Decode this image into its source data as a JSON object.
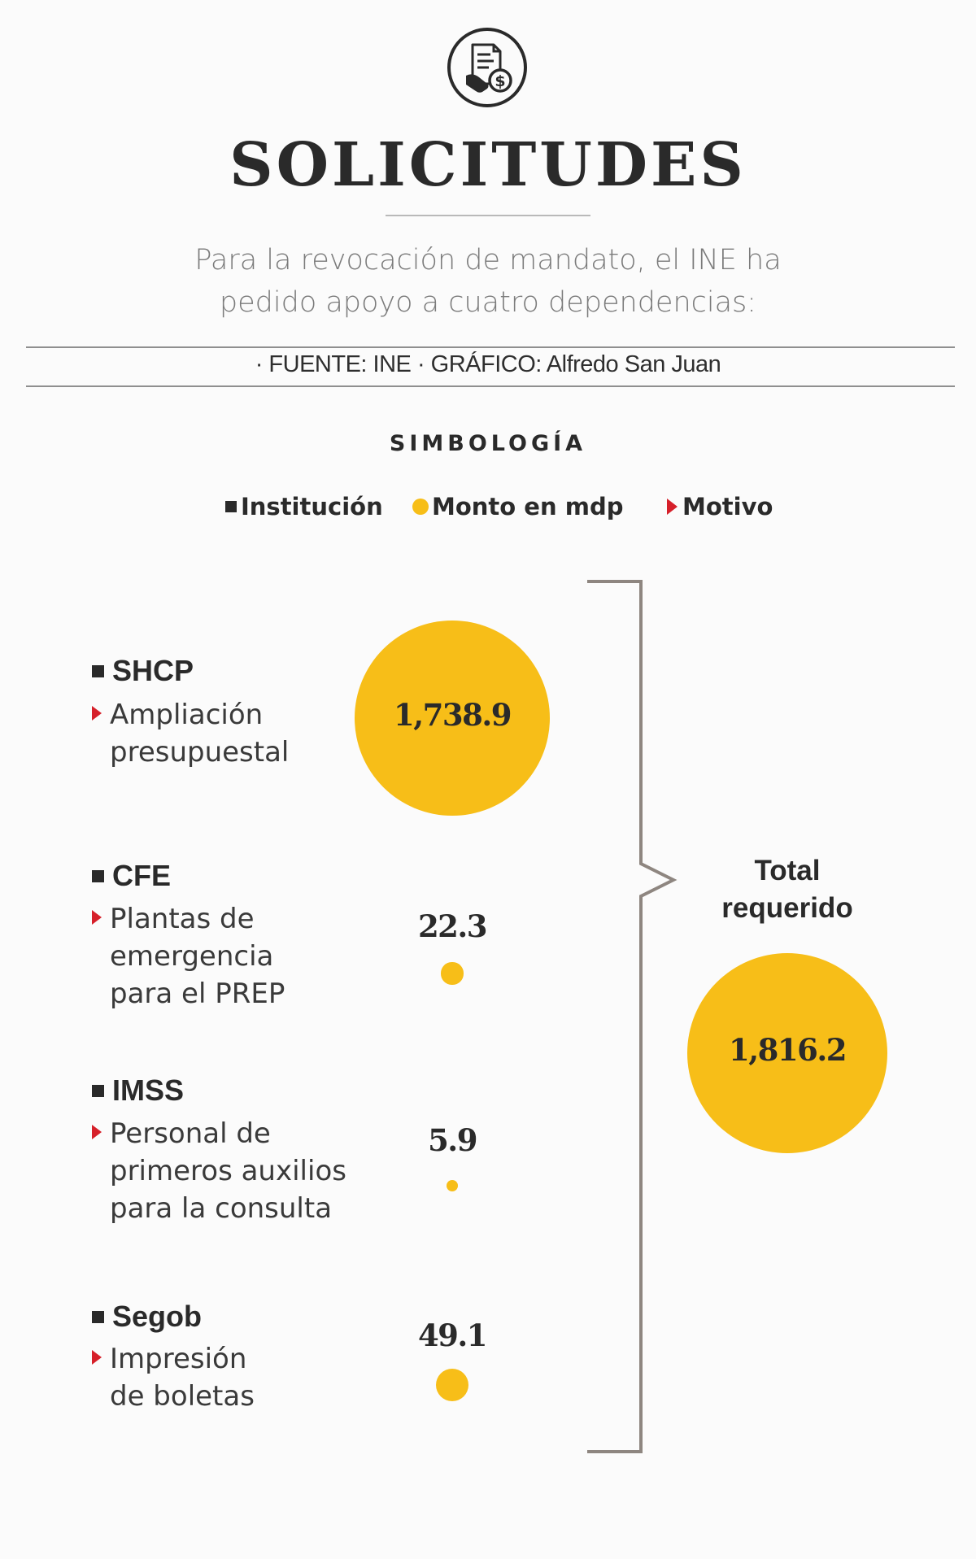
{
  "header": {
    "icon": "document-money-icon",
    "title": "SOLICITUDES",
    "subtitle_line1": "Para la revocación de mandato, el INE ha",
    "subtitle_line2": "pedido apoyo a cuatro dependencias:",
    "source": "· FUENTE: INE · GRÁFICO: Alfredo San Juan"
  },
  "legend": {
    "title": "SIMBOLOGÍA",
    "institution": "Institución",
    "amount": "Monto en mdp",
    "reason": "Motivo"
  },
  "colors": {
    "bubble": "#f7be18",
    "marker_red": "#d6202a",
    "text": "#2a2a2a",
    "bracket": "#8e8680"
  },
  "chart_data": {
    "type": "bubble",
    "unit": "mdp",
    "rows": [
      {
        "institution": "SHCP",
        "reason": "Ampliación\npresupuestal",
        "value": 1738.9,
        "value_label": "1,738.9"
      },
      {
        "institution": "CFE",
        "reason": "Plantas de\nemergencia\npara el PREP",
        "value": 22.3,
        "value_label": "22.3"
      },
      {
        "institution": "IMSS",
        "reason": "Personal de\nprimeros auxilios\npara la consulta",
        "value": 5.9,
        "value_label": "5.9"
      },
      {
        "institution": "Segob",
        "reason": "Impresión\nde boletas",
        "value": 49.1,
        "value_label": "49.1"
      }
    ],
    "total": {
      "label": "Total\nrequerido",
      "value": 1816.2,
      "value_label": "1,816.2"
    }
  }
}
